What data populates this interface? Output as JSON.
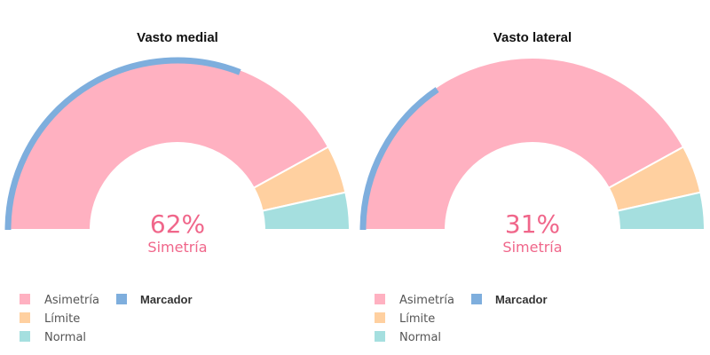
{
  "chart_data": [
    {
      "type": "gauge",
      "title": "Vasto medial",
      "center_value": "62%",
      "center_label": "Simetría",
      "marker_value": 62,
      "range": [
        0,
        100
      ],
      "segments": [
        {
          "name": "Asimetría",
          "from": 0,
          "to": 84,
          "color": "#ffb1c1"
        },
        {
          "name": "Límite",
          "from": 84,
          "to": 93,
          "color": "#ffd0a0"
        },
        {
          "name": "Normal",
          "from": 93,
          "to": 100,
          "color": "#a5dfdf"
        }
      ],
      "legend": [
        {
          "label": "Asimetría",
          "color": "#ffb1c1",
          "bold": false
        },
        {
          "label": "Límite",
          "color": "#ffd0a0",
          "bold": false
        },
        {
          "label": "Normal",
          "color": "#a5dfdf",
          "bold": false
        },
        {
          "label": "Marcador",
          "color": "#7eaedd",
          "bold": true
        }
      ],
      "legend_position": "bottom-left"
    },
    {
      "type": "gauge",
      "title": "Vasto lateral",
      "center_value": "31%",
      "center_label": "Simetría",
      "marker_value": 31,
      "range": [
        0,
        100
      ],
      "segments": [
        {
          "name": "Asimetría",
          "from": 0,
          "to": 84,
          "color": "#ffb1c1"
        },
        {
          "name": "Límite",
          "from": 84,
          "to": 93,
          "color": "#ffd0a0"
        },
        {
          "name": "Normal",
          "from": 93,
          "to": 100,
          "color": "#a5dfdf"
        }
      ],
      "legend": [
        {
          "label": "Asimetría",
          "color": "#ffb1c1",
          "bold": false
        },
        {
          "label": "Límite",
          "color": "#ffd0a0",
          "bold": false
        },
        {
          "label": "Normal",
          "color": "#a5dfdf",
          "bold": false
        },
        {
          "label": "Marcador",
          "color": "#7eaedd",
          "bold": true
        }
      ],
      "legend_position": "bottom-left"
    }
  ],
  "colors": {
    "center_text": "#f0668a",
    "marker": "#7eaedd",
    "separator": "#ffffff"
  }
}
